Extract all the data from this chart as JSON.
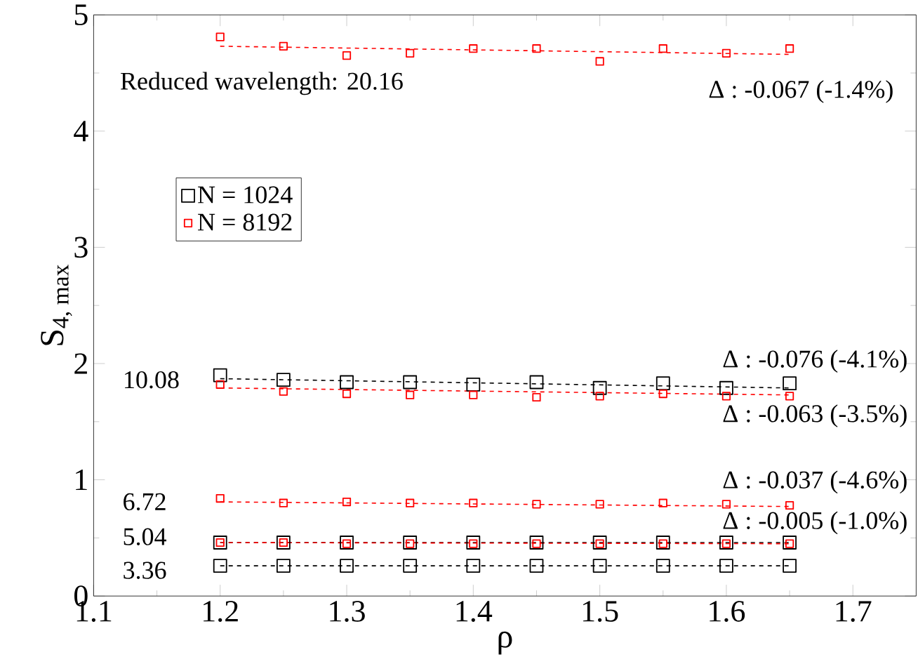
{
  "chart_data": {
    "type": "scatter",
    "xlabel": "ρ",
    "ylabel": "S$_{4, max}$",
    "xlim": [
      1.1,
      1.75
    ],
    "ylim": [
      0,
      5
    ],
    "xticks": [
      1.1,
      1.2,
      1.3,
      1.4,
      1.5,
      1.6,
      1.7
    ],
    "yticks": [
      0,
      1,
      2,
      3,
      4,
      5
    ],
    "legend": "top left",
    "grid": false,
    "series": [
      {
        "name": "N = 1024",
        "type": "scatter",
        "color": "#000000",
        "marker": "square",
        "x": [
          1.2,
          1.25,
          1.3,
          1.35,
          1.4,
          1.45,
          1.5,
          1.55,
          1.6,
          1.65
        ],
        "values": [
          1.9,
          1.86,
          1.84,
          1.84,
          1.82,
          1.84,
          1.79,
          1.83,
          1.79,
          1.83
        ]
      },
      {
        "name": "N = 8192",
        "type": "scatter",
        "color": "#ff0000",
        "marker": "square",
        "x": [
          1.2,
          1.25,
          1.3,
          1.35,
          1.4,
          1.45,
          1.5,
          1.55,
          1.6,
          1.65
        ],
        "values": [
          4.81,
          4.73,
          4.65,
          4.67,
          4.71,
          4.71,
          4.6,
          4.71,
          4.67,
          4.71
        ]
      },
      {
        "color": "#000000",
        "marker": "square",
        "x": [
          1.2,
          1.25,
          1.3,
          1.35,
          1.4,
          1.45,
          1.5,
          1.55,
          1.6,
          1.65
        ],
        "values": [
          0.46,
          0.46,
          0.46,
          0.46,
          0.46,
          0.46,
          0.46,
          0.46,
          0.46,
          0.46
        ]
      },
      {
        "type": "scatter",
        "color": "#000000",
        "marker": "square",
        "x": [
          1.2,
          1.25,
          1.3,
          1.35,
          1.4,
          1.45,
          1.5,
          1.55,
          1.6,
          1.65
        ],
        "values": [
          0.26,
          0.26,
          0.26,
          0.26,
          0.26,
          0.26,
          0.26,
          0.26,
          0.26,
          0.26
        ]
      },
      {
        "type": "scatter",
        "color": "#ff0000",
        "marker": "square",
        "x": [
          1.2,
          1.25,
          1.3,
          1.35,
          1.4,
          1.45,
          1.5,
          1.55,
          1.6,
          1.65
        ],
        "values": [
          1.82,
          1.76,
          1.74,
          1.73,
          1.73,
          1.71,
          1.72,
          1.74,
          1.72,
          1.72
        ]
      },
      {
        "type": "scatter",
        "color": "#ff0000",
        "marker": "square",
        "x": [
          1.2,
          1.25,
          1.3,
          1.35,
          1.4,
          1.45,
          1.5,
          1.55,
          1.6,
          1.65
        ],
        "values": [
          0.84,
          0.8,
          0.81,
          0.8,
          0.8,
          0.79,
          0.79,
          0.8,
          0.79,
          0.78
        ]
      },
      {
        "type": "scatter",
        "color": "#ff0000",
        "marker": "square",
        "x": [
          1.2,
          1.25,
          1.3,
          1.35,
          1.4,
          1.45,
          1.5,
          1.55,
          1.6,
          1.65
        ],
        "values": [
          0.46,
          0.46,
          0.45,
          0.45,
          0.45,
          0.45,
          0.45,
          0.45,
          0.45,
          0.45
        ]
      },
      {
        "type": "line",
        "color": "#ff0000",
        "marker": "none",
        "line_style": "dashed",
        "x": [
          1.2,
          1.65
        ],
        "values": [
          4.73,
          4.66
        ]
      },
      {
        "type": "line",
        "color": "#000000",
        "marker": "none",
        "line_style": "dashed",
        "x": [
          1.2,
          1.65
        ],
        "values": [
          1.87,
          1.79
        ]
      },
      {
        "type": "line",
        "color": "#ff0000",
        "marker": "none",
        "line_style": "dashed",
        "x": [
          1.2,
          1.65
        ],
        "values": [
          1.79,
          1.73
        ]
      },
      {
        "type": "line",
        "color": "#ff0000",
        "marker": "none",
        "line_style": "dashed",
        "x": [
          1.2,
          1.65
        ],
        "values": [
          0.81,
          0.77
        ]
      },
      {
        "type": "line",
        "color": "#000000",
        "marker": "none",
        "line_style": "dashed",
        "x": [
          1.2,
          1.65
        ],
        "values": [
          0.46,
          0.46
        ]
      },
      {
        "type": "line",
        "color": "#ff0000",
        "marker": "none",
        "line_style": "dashed",
        "x": [
          1.2,
          1.65
        ],
        "values": [
          0.46,
          0.45
        ]
      },
      {
        "type": "line",
        "color": "#000000",
        "marker": "none",
        "line_style": "dashed",
        "x": [
          1.2,
          1.65
        ],
        "values": [
          0.26,
          0.26
        ]
      }
    ],
    "annotations": [
      "Reduced wavelength: 20.16",
      "10.08",
      "6.72",
      "5.04",
      "3.36",
      "Δ : -0.067 (-1.4%)",
      "Δ : -0.076 (-4.1%)",
      "Δ : -0.063 (-3.5%)",
      "Δ : -0.037 (-4.6%)",
      "Δ : -0.005 (-1.0%)"
    ]
  }
}
